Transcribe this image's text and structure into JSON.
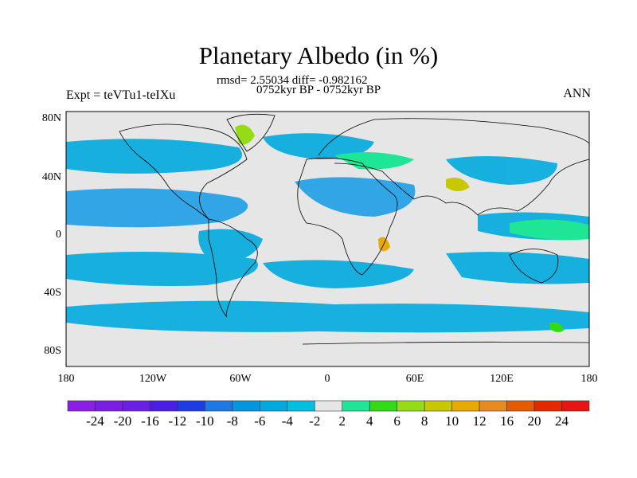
{
  "title": "Planetary Albedo (in %)",
  "stats": "rmsd= 2.55034 diff= -0.982162",
  "period": "0752kyr BP - 0752kyr BP",
  "expt": "Expt = teVTu1-teIXu",
  "season": "ANN",
  "lat_labels": [
    "80N",
    "40N",
    "0",
    "40S",
    "80S"
  ],
  "lon_labels": [
    "180",
    "120W",
    "60W",
    "0",
    "60E",
    "120E",
    "180"
  ],
  "colorbar": {
    "colors": [
      "#8a1ee6",
      "#7a1ee6",
      "#6a1ee6",
      "#4a1ee6",
      "#1e3ce6",
      "#1e78e6",
      "#0096e0",
      "#00aade",
      "#00c0de",
      "#e6e6e6",
      "#1ee696",
      "#32dc14",
      "#96dc14",
      "#c8c800",
      "#e6aa00",
      "#e68c1e",
      "#e65a00",
      "#e62800",
      "#e61414"
    ],
    "labels": [
      "-24",
      "-20",
      "-16",
      "-12",
      "-10",
      "-8",
      "-6",
      "-4",
      "-2",
      "2",
      "4",
      "6",
      "8",
      "10",
      "12",
      "16",
      "20",
      "24"
    ]
  }
}
